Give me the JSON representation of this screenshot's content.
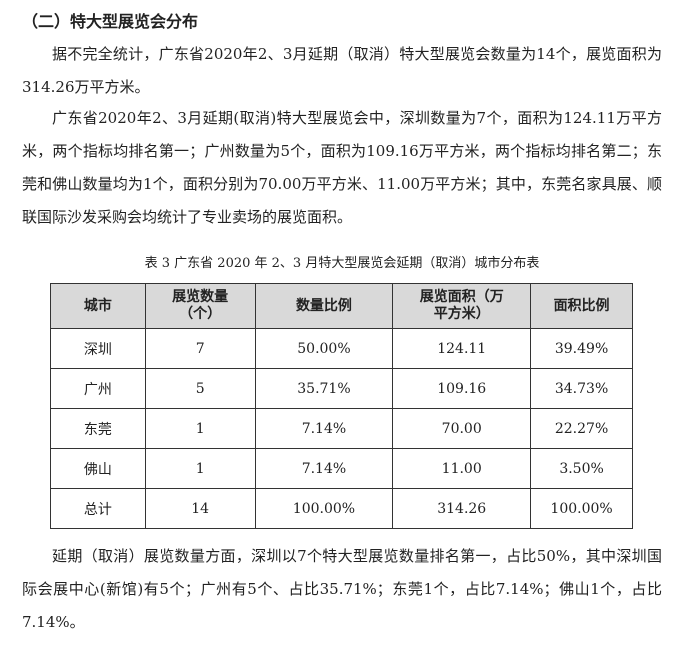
{
  "heading": "（二）特大型展览会分布",
  "paragraphs": [
    "据不完全统计，广东省2020年2、3月延期（取消）特大型展览会数量为14个，展览面积为314.26万平方米。",
    "广东省2020年2、3月延期(取消)特大型展览会中，深圳数量为7个，面积为124.11万平方米，两个指标均排名第一；广州数量为5个，面积为109.16万平方米，两个指标均排名第二；东莞和佛山数量均为1个，面积分别为70.00万平方米、11.00万平方米；其中，东莞名家具展、顺联国际沙发采购会均统计了专业卖场的展览面积。",
    "延期（取消）展览数量方面，深圳以7个特大型展览数量排名第一，占比50%，其中深圳国际会展中心(新馆)有5个；广州有5个、占比35.71%；东莞1个，占比7.14%；佛山1个，占比7.14%。"
  ],
  "table": {
    "caption": "表 3 广东省 2020 年 2、3 月特大型展览会延期（取消）城市分布表",
    "headers": [
      "城市",
      "展览数量（个）",
      "数量比例",
      "展览面积（万平方米）",
      "面积比例"
    ],
    "rows": [
      [
        "深圳",
        "7",
        "50.00%",
        "124.11",
        "39.49%"
      ],
      [
        "广州",
        "5",
        "35.71%",
        "109.16",
        "34.73%"
      ],
      [
        "东莞",
        "1",
        "7.14%",
        "70.00",
        "22.27%"
      ],
      [
        "佛山",
        "1",
        "7.14%",
        "11.00",
        "3.50%"
      ],
      [
        "总计",
        "14",
        "100.00%",
        "314.26",
        "100.00%"
      ]
    ]
  }
}
